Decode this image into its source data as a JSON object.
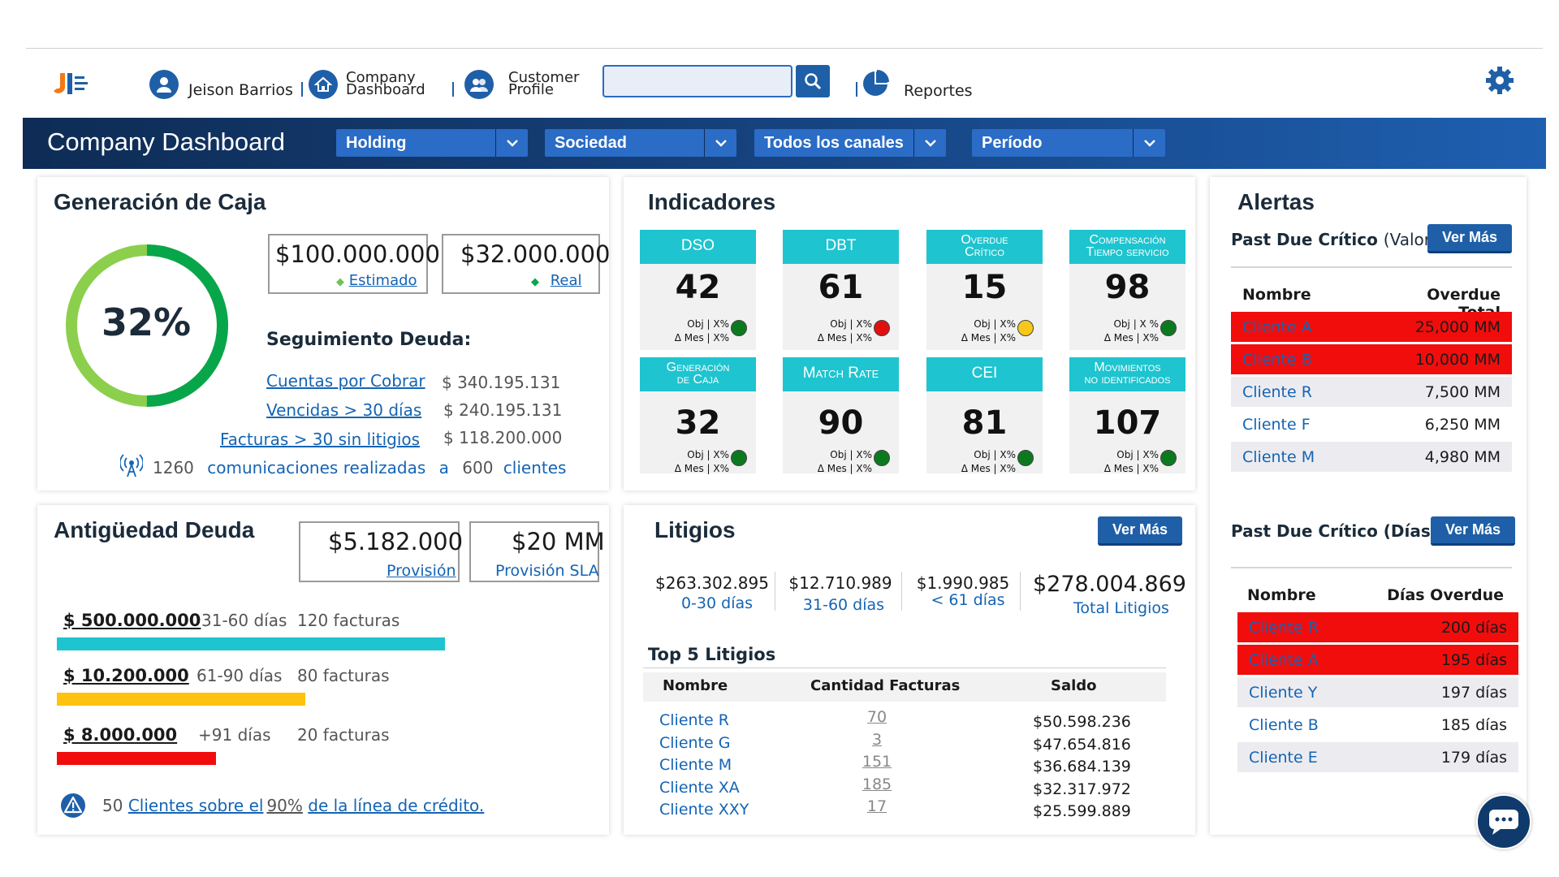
{
  "topnav": {
    "user_name": "Jeison Barrios",
    "company_dashboard_line1": "Company",
    "company_dashboard_line2": "Dashboard",
    "customer_profile_line1": "Customer",
    "customer_profile_line2": "Profile",
    "search_placeholder": "",
    "reportes": "Reportes"
  },
  "header": {
    "title": "Company Dashboard",
    "filters": [
      "Holding",
      "Sociedad",
      "Todos los canales",
      "Período"
    ]
  },
  "caja": {
    "title": "Generación de Caja",
    "percent_label": "32%",
    "percent_value": 0.32,
    "estimado_value": "$100.000.000",
    "estimado_label": "Estimado",
    "real_value": "$32.000.000",
    "real_label": "Real",
    "seguimiento_title": "Seguimiento Deuda:",
    "deuda_rows": [
      {
        "label": "Cuentas por Cobrar",
        "value": "$ 340.195.131"
      },
      {
        "label": "Vencidas > 30 días",
        "value": "$ 240.195.131"
      },
      {
        "label": "Facturas > 30 sin litigios",
        "value": "$ 118.200.000"
      }
    ],
    "com_count": "1260",
    "com_text": "comunicaciones realizadas",
    "com_a": "a",
    "clientes_count": "600",
    "clientes_text": "clientes"
  },
  "indicadores": {
    "title": "Indicadores",
    "sub_line1": "Obj | X%",
    "sub_line2": "Δ Mes | X%",
    "tiles": [
      {
        "name": "DSO",
        "value": "42",
        "status": "green"
      },
      {
        "name": "DBT",
        "value": "61",
        "status": "red"
      },
      {
        "name_line1": "Overdue",
        "name_line2": "Crítico",
        "value": "15",
        "status": "yellow"
      },
      {
        "name_line1": "Compensación",
        "name_line2": "Tiempo servicio",
        "value": "98",
        "status": "green"
      },
      {
        "name_line1": "Generación",
        "name_line2": "de Caja",
        "value": "32",
        "status": "green"
      },
      {
        "name": "Match Rate",
        "value": "90",
        "status": "green"
      },
      {
        "name": "CEI",
        "value": "81",
        "status": "green"
      },
      {
        "name_line1": "Movimientos",
        "name_line2": "no identificados",
        "value": "107",
        "status": "green"
      }
    ],
    "tile3_sub_line1": "Obj | X %",
    "colors": {
      "green": "#0b7a1f",
      "red": "#e01010",
      "yellow": "#f7c81a",
      "tile_head": "#1ec4cf"
    }
  },
  "alertas": {
    "title": "Alertas",
    "valor_title": "Past Due Crítico",
    "valor_suffix": "(Valor)",
    "ver_mas": "Ver Más",
    "valor_col_name": "Nombre",
    "valor_col_value": "Overdue Total",
    "valor_rows": [
      {
        "name": "Cliente A",
        "value": "25,000 MM",
        "style": "red"
      },
      {
        "name": "Cliente B",
        "value": "10,000 MM",
        "style": "red"
      },
      {
        "name": "Cliente R",
        "value": "7,500 MM",
        "style": "gray"
      },
      {
        "name": "Cliente F",
        "value": "6,250 MM",
        "style": "white"
      },
      {
        "name": "Cliente M",
        "value": "4,980 MM",
        "style": "gray"
      }
    ],
    "dias_title": "Past Due Crítico (Días)",
    "dias_col_name": "Nombre",
    "dias_col_value": "Días Overdue",
    "dias_rows": [
      {
        "name": "Cliente R",
        "value": "200 días",
        "style": "red"
      },
      {
        "name": "Cliente A",
        "value": "195 días",
        "style": "red"
      },
      {
        "name": "Cliente Y",
        "value": "197 días",
        "style": "gray"
      },
      {
        "name": "Cliente B",
        "value": "185 días",
        "style": "white"
      },
      {
        "name": "Cliente E",
        "value": "179 días",
        "style": "gray"
      }
    ]
  },
  "antiguedad": {
    "title": "Antigüedad Deuda",
    "provision_value": "$5.182.000",
    "provision_label": "Provisión",
    "sla_value": "$20 MM",
    "sla_label": "Provisión SLA",
    "rows": [
      {
        "amount": "$ 500.000.000",
        "range": "31-60 días",
        "facturas": "120 facturas",
        "fill": 1.0,
        "color": "#1ec4cf"
      },
      {
        "amount": "$ 10.200.000",
        "range": "61-90 días",
        "facturas": "80 facturas",
        "fill": 0.64,
        "color": "#ffc20e"
      },
      {
        "amount": "$ 8.000.000",
        "range": "+91 días",
        "facturas": "20 facturas",
        "fill": 0.41,
        "color": "#f20d0d"
      }
    ],
    "note_count": "50",
    "note_link1": "Clientes sobre el",
    "note_pct": "90%",
    "note_link2": "de la línea de crédito."
  },
  "litigios": {
    "title": "Litigios",
    "ver_mas": "Ver Más",
    "summary": [
      {
        "value": "$263.302.895",
        "label": "0-30 días"
      },
      {
        "value": "$12.710.989",
        "label": "31-60 días"
      },
      {
        "value": "$1.990.985",
        "label": "< 61 días"
      }
    ],
    "total_value": "$278.004.869",
    "total_label": "Total Litigios",
    "top_title": "Top 5 Litigios",
    "col_name": "Nombre",
    "col_count": "Cantidad Facturas",
    "col_saldo": "Saldo",
    "rows": [
      {
        "name": "Cliente R",
        "count": "70",
        "saldo": "$50.598.236"
      },
      {
        "name": "Cliente G",
        "count": "3",
        "saldo": "$47.654.816"
      },
      {
        "name": "Cliente M",
        "count": "151",
        "saldo": "$36.684.139"
      },
      {
        "name": "Cliente XA",
        "count": "185",
        "saldo": "$32.317.972"
      },
      {
        "name": "Cliente XXY",
        "count": "17",
        "saldo": "$25.599.889"
      }
    ]
  }
}
